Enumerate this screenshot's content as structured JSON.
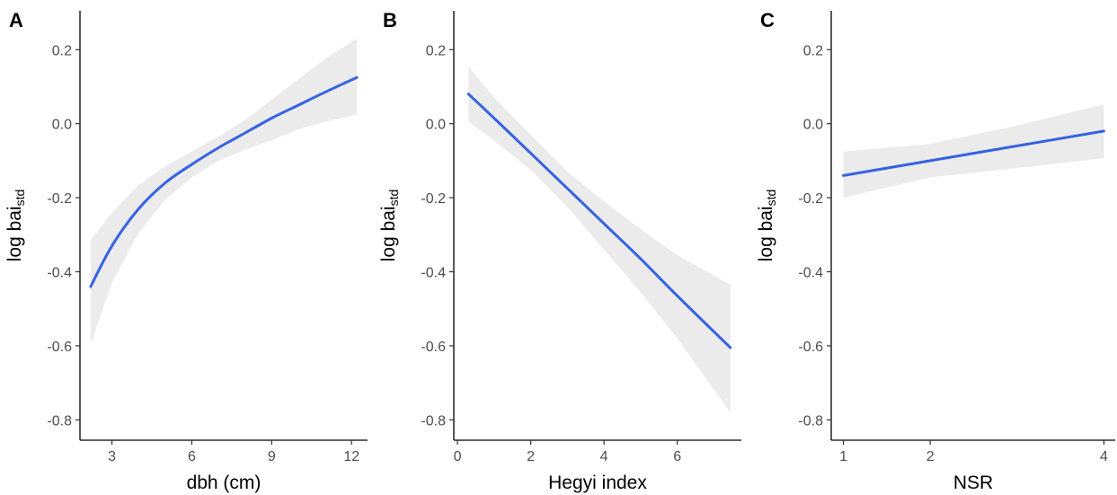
{
  "chart_data": [
    {
      "type": "line",
      "panel_label": "A",
      "xlabel": "dbh (cm)",
      "ylabel_main": "log bai",
      "ylabel_sub": "std",
      "xlim": [
        1.8,
        12.6
      ],
      "ylim": [
        -0.855,
        0.305
      ],
      "x_ticks": [
        3,
        6,
        9,
        12
      ],
      "x_tick_labels": [
        "3",
        "6",
        "9",
        "12"
      ],
      "y_ticks": [
        0.2,
        0.0,
        -0.2,
        -0.4,
        -0.6,
        -0.8
      ],
      "y_tick_labels": [
        "0.2",
        "0.0",
        "-0.2",
        "-0.4",
        "-0.6",
        "-0.8"
      ],
      "line_color": "#3562e3",
      "band_color": "#ebebeb",
      "series": [
        {
          "x": [
            2.2,
            3,
            4,
            5,
            6,
            7,
            8,
            9,
            10,
            11,
            12.2
          ],
          "y": [
            -0.44,
            -0.33,
            -0.23,
            -0.16,
            -0.11,
            -0.065,
            -0.025,
            0.015,
            0.05,
            0.085,
            0.125
          ],
          "lower": [
            -0.595,
            -0.43,
            -0.295,
            -0.205,
            -0.145,
            -0.1,
            -0.07,
            -0.045,
            -0.015,
            0.005,
            0.025
          ],
          "upper": [
            -0.315,
            -0.24,
            -0.165,
            -0.115,
            -0.075,
            -0.035,
            0.01,
            0.065,
            0.12,
            0.175,
            0.23
          ]
        }
      ]
    },
    {
      "type": "line",
      "panel_label": "B",
      "xlabel": "Hegyi index",
      "ylabel_main": "log bai",
      "ylabel_sub": "std",
      "xlim": [
        -0.1,
        7.75
      ],
      "ylim": [
        -0.855,
        0.305
      ],
      "x_ticks": [
        0,
        2,
        4,
        6
      ],
      "x_tick_labels": [
        "0",
        "2",
        "4",
        "6"
      ],
      "y_ticks": [
        0.2,
        0.0,
        -0.2,
        -0.4,
        -0.6,
        -0.8
      ],
      "y_tick_labels": [
        "0.2",
        "0.0",
        "-0.2",
        "-0.4",
        "-0.6",
        "-0.8"
      ],
      "line_color": "#3562e3",
      "band_color": "#ebebeb",
      "series": [
        {
          "x": [
            0.3,
            1,
            2,
            3,
            4,
            5,
            6,
            7.45
          ],
          "y": [
            0.08,
            0.015,
            -0.08,
            -0.175,
            -0.27,
            -0.365,
            -0.465,
            -0.605
          ],
          "lower": [
            0.005,
            -0.045,
            -0.125,
            -0.225,
            -0.34,
            -0.455,
            -0.58,
            -0.78
          ],
          "upper": [
            0.155,
            0.07,
            -0.03,
            -0.13,
            -0.21,
            -0.285,
            -0.355,
            -0.435
          ]
        }
      ]
    },
    {
      "type": "line",
      "panel_label": "C",
      "xlabel": "NSR",
      "ylabel_main": "log bai",
      "ylabel_sub": "std",
      "xlim": [
        0.86,
        4.13
      ],
      "ylim": [
        -0.855,
        0.305
      ],
      "x_ticks": [
        1,
        2,
        4
      ],
      "x_tick_labels": [
        "1",
        "2",
        "4"
      ],
      "y_ticks": [
        0.2,
        0.0,
        -0.2,
        -0.4,
        -0.6,
        -0.8
      ],
      "y_tick_labels": [
        "0.2",
        "0.0",
        "-0.2",
        "-0.4",
        "-0.6",
        "-0.8"
      ],
      "line_color": "#3562e3",
      "band_color": "#ebebeb",
      "series": [
        {
          "x": [
            1,
            2,
            3,
            4
          ],
          "y": [
            -0.14,
            -0.1,
            -0.06,
            -0.02
          ],
          "lower": [
            -0.2,
            -0.145,
            -0.12,
            -0.093
          ],
          "upper": [
            -0.075,
            -0.055,
            -0.005,
            0.052
          ]
        }
      ]
    }
  ]
}
